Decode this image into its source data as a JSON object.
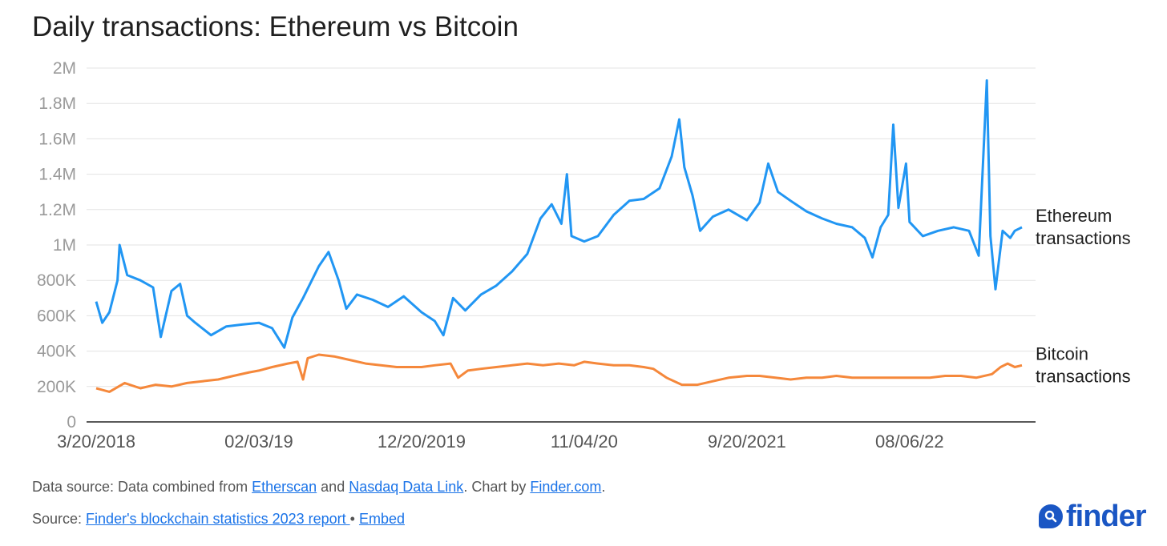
{
  "title": "Daily transactions: Ethereum vs Bitcoin",
  "footer": {
    "source_prefix": "Data source: Data combined from ",
    "etherscan": "Etherscan",
    "and": " and ",
    "nasdaq": "Nasdaq Data Link",
    "chart_by": ". Chart by ",
    "finder_link": "Finder.com",
    "period": ".",
    "source_label": "Source: ",
    "report_link": "Finder's blockchain statistics 2023 report ",
    "bullet": " • ",
    "embed_link": "Embed"
  },
  "logo": {
    "text": "finder",
    "icon": "search-magnifier-icon"
  },
  "colors": {
    "ethereum": "#2196f3",
    "bitcoin": "#f5883b",
    "grid": "#e3e3e3",
    "axis": "#222222"
  },
  "chart_data": {
    "type": "line",
    "title": "Daily transactions: Ethereum vs Bitcoin",
    "xlabel": "",
    "ylabel": "",
    "ylim": [
      0,
      2000000
    ],
    "y_ticks": [
      0,
      200000,
      400000,
      600000,
      800000,
      1000000,
      1200000,
      1400000,
      1600000,
      1800000,
      2000000
    ],
    "y_tick_labels": [
      "0",
      "200K",
      "400K",
      "600K",
      "800K",
      "1M",
      "1.2M",
      "1.4M",
      "1.6M",
      "1.8M",
      "2M"
    ],
    "x_range": [
      "2018-03-20",
      "2023-03-15"
    ],
    "x_ticks": [
      "2018-03-20",
      "2019-02-03",
      "2019-12-20",
      "2020-11-04",
      "2021-09-20",
      "2022-08-06"
    ],
    "x_tick_labels": [
      "3/20/2018",
      "02/03/19",
      "12/20/2019",
      "11/04/20",
      "9/20/2021",
      "08/06/22"
    ],
    "grid": true,
    "legend": "right (end-of-line labels)",
    "series": [
      {
        "name": "Ethereum transactions",
        "label_lines": [
          "Ethereum",
          "transactions"
        ],
        "color": "#2196f3",
        "points": [
          [
            "2018-03-20",
            680000
          ],
          [
            "2018-04-01",
            560000
          ],
          [
            "2018-04-15",
            620000
          ],
          [
            "2018-05-01",
            800000
          ],
          [
            "2018-05-05",
            1000000
          ],
          [
            "2018-05-20",
            830000
          ],
          [
            "2018-06-15",
            800000
          ],
          [
            "2018-07-10",
            760000
          ],
          [
            "2018-07-25",
            480000
          ],
          [
            "2018-08-15",
            740000
          ],
          [
            "2018-09-01",
            780000
          ],
          [
            "2018-09-15",
            600000
          ],
          [
            "2018-10-01",
            560000
          ],
          [
            "2018-11-01",
            490000
          ],
          [
            "2018-12-01",
            540000
          ],
          [
            "2019-01-01",
            550000
          ],
          [
            "2019-02-03",
            560000
          ],
          [
            "2019-03-01",
            530000
          ],
          [
            "2019-03-25",
            420000
          ],
          [
            "2019-04-10",
            590000
          ],
          [
            "2019-05-01",
            700000
          ],
          [
            "2019-06-01",
            880000
          ],
          [
            "2019-06-20",
            960000
          ],
          [
            "2019-07-10",
            800000
          ],
          [
            "2019-07-25",
            640000
          ],
          [
            "2019-08-15",
            720000
          ],
          [
            "2019-09-15",
            690000
          ],
          [
            "2019-10-15",
            650000
          ],
          [
            "2019-11-15",
            710000
          ],
          [
            "2019-12-20",
            620000
          ],
          [
            "2020-01-15",
            570000
          ],
          [
            "2020-02-01",
            490000
          ],
          [
            "2020-02-20",
            700000
          ],
          [
            "2020-03-15",
            630000
          ],
          [
            "2020-04-15",
            720000
          ],
          [
            "2020-05-15",
            770000
          ],
          [
            "2020-06-15",
            850000
          ],
          [
            "2020-07-15",
            950000
          ],
          [
            "2020-08-10",
            1150000
          ],
          [
            "2020-09-01",
            1230000
          ],
          [
            "2020-09-20",
            1120000
          ],
          [
            "2020-10-01",
            1400000
          ],
          [
            "2020-10-10",
            1050000
          ],
          [
            "2020-11-04",
            1020000
          ],
          [
            "2020-12-01",
            1050000
          ],
          [
            "2021-01-01",
            1170000
          ],
          [
            "2021-02-01",
            1250000
          ],
          [
            "2021-03-01",
            1260000
          ],
          [
            "2021-04-01",
            1320000
          ],
          [
            "2021-04-25",
            1500000
          ],
          [
            "2021-05-10",
            1710000
          ],
          [
            "2021-05-20",
            1440000
          ],
          [
            "2021-06-05",
            1280000
          ],
          [
            "2021-06-20",
            1080000
          ],
          [
            "2021-07-15",
            1160000
          ],
          [
            "2021-08-15",
            1200000
          ],
          [
            "2021-09-20",
            1140000
          ],
          [
            "2021-10-15",
            1240000
          ],
          [
            "2021-11-01",
            1460000
          ],
          [
            "2021-11-20",
            1300000
          ],
          [
            "2021-12-15",
            1250000
          ],
          [
            "2022-01-15",
            1190000
          ],
          [
            "2022-02-15",
            1150000
          ],
          [
            "2022-03-15",
            1120000
          ],
          [
            "2022-04-15",
            1100000
          ],
          [
            "2022-05-10",
            1040000
          ],
          [
            "2022-05-25",
            930000
          ],
          [
            "2022-06-10",
            1100000
          ],
          [
            "2022-06-25",
            1170000
          ],
          [
            "2022-07-05",
            1680000
          ],
          [
            "2022-07-15",
            1210000
          ],
          [
            "2022-07-30",
            1460000
          ],
          [
            "2022-08-06",
            1130000
          ],
          [
            "2022-09-01",
            1050000
          ],
          [
            "2022-10-01",
            1080000
          ],
          [
            "2022-11-01",
            1100000
          ],
          [
            "2022-12-01",
            1080000
          ],
          [
            "2022-12-20",
            940000
          ],
          [
            "2023-01-05",
            1930000
          ],
          [
            "2023-01-12",
            1050000
          ],
          [
            "2023-01-22",
            750000
          ],
          [
            "2023-02-05",
            1080000
          ],
          [
            "2023-02-20",
            1040000
          ],
          [
            "2023-03-01",
            1080000
          ],
          [
            "2023-03-15",
            1100000
          ]
        ]
      },
      {
        "name": "Bitcoin transactions",
        "label_lines": [
          "Bitcoin",
          "transactions"
        ],
        "color": "#f5883b",
        "points": [
          [
            "2018-03-20",
            190000
          ],
          [
            "2018-04-15",
            170000
          ],
          [
            "2018-05-15",
            220000
          ],
          [
            "2018-06-15",
            190000
          ],
          [
            "2018-07-15",
            210000
          ],
          [
            "2018-08-15",
            200000
          ],
          [
            "2018-09-15",
            220000
          ],
          [
            "2018-10-15",
            230000
          ],
          [
            "2018-11-15",
            240000
          ],
          [
            "2018-12-15",
            260000
          ],
          [
            "2019-01-15",
            280000
          ],
          [
            "2019-02-03",
            290000
          ],
          [
            "2019-03-01",
            310000
          ],
          [
            "2019-04-01",
            330000
          ],
          [
            "2019-04-20",
            340000
          ],
          [
            "2019-05-01",
            240000
          ],
          [
            "2019-05-10",
            360000
          ],
          [
            "2019-06-01",
            380000
          ],
          [
            "2019-07-01",
            370000
          ],
          [
            "2019-08-01",
            350000
          ],
          [
            "2019-09-01",
            330000
          ],
          [
            "2019-10-01",
            320000
          ],
          [
            "2019-11-01",
            310000
          ],
          [
            "2019-12-20",
            310000
          ],
          [
            "2020-01-15",
            320000
          ],
          [
            "2020-02-15",
            330000
          ],
          [
            "2020-03-01",
            250000
          ],
          [
            "2020-03-20",
            290000
          ],
          [
            "2020-04-15",
            300000
          ],
          [
            "2020-05-15",
            310000
          ],
          [
            "2020-06-15",
            320000
          ],
          [
            "2020-07-15",
            330000
          ],
          [
            "2020-08-15",
            320000
          ],
          [
            "2020-09-15",
            330000
          ],
          [
            "2020-10-15",
            320000
          ],
          [
            "2020-11-04",
            340000
          ],
          [
            "2020-12-01",
            330000
          ],
          [
            "2021-01-01",
            320000
          ],
          [
            "2021-02-01",
            320000
          ],
          [
            "2021-03-01",
            310000
          ],
          [
            "2021-03-20",
            300000
          ],
          [
            "2021-04-15",
            250000
          ],
          [
            "2021-05-15",
            210000
          ],
          [
            "2021-06-15",
            210000
          ],
          [
            "2021-07-15",
            230000
          ],
          [
            "2021-08-15",
            250000
          ],
          [
            "2021-09-20",
            260000
          ],
          [
            "2021-10-15",
            260000
          ],
          [
            "2021-11-15",
            250000
          ],
          [
            "2021-12-15",
            240000
          ],
          [
            "2022-01-15",
            250000
          ],
          [
            "2022-02-15",
            250000
          ],
          [
            "2022-03-15",
            260000
          ],
          [
            "2022-04-15",
            250000
          ],
          [
            "2022-05-15",
            250000
          ],
          [
            "2022-06-15",
            250000
          ],
          [
            "2022-07-15",
            250000
          ],
          [
            "2022-08-06",
            250000
          ],
          [
            "2022-09-15",
            250000
          ],
          [
            "2022-10-15",
            260000
          ],
          [
            "2022-11-15",
            260000
          ],
          [
            "2022-12-15",
            250000
          ],
          [
            "2023-01-15",
            270000
          ],
          [
            "2023-02-01",
            310000
          ],
          [
            "2023-02-15",
            330000
          ],
          [
            "2023-03-01",
            310000
          ],
          [
            "2023-03-15",
            320000
          ]
        ]
      }
    ]
  }
}
